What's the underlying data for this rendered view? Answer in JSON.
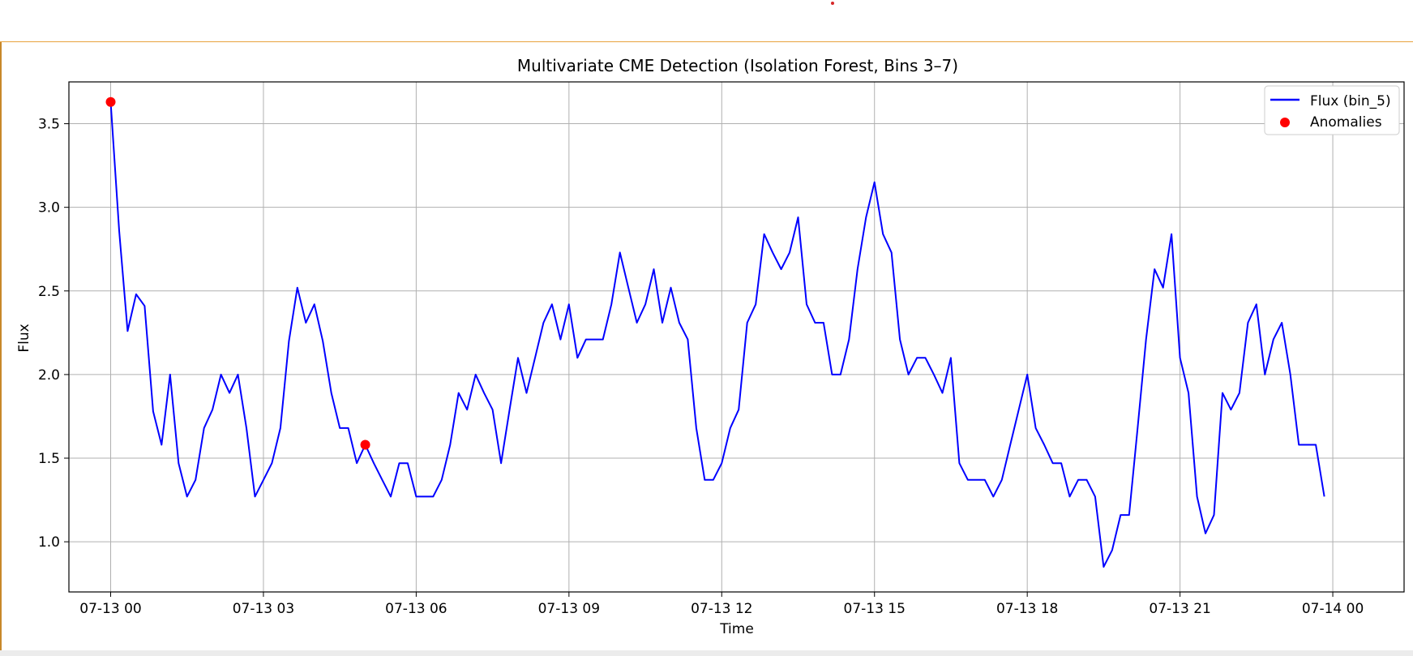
{
  "chart_data": {
    "type": "line",
    "title": "Multivariate CME Detection (Isolation Forest, Bins 3–7)",
    "xlabel": "Time",
    "ylabel": "Flux",
    "x_range_hours": [
      -0.82,
      25.4
    ],
    "ylim": [
      0.7,
      3.75
    ],
    "grid": true,
    "legend_position": "top-right",
    "x_ticks": [
      {
        "h": 0,
        "label": "07-13 00"
      },
      {
        "h": 3,
        "label": "07-13 03"
      },
      {
        "h": 6,
        "label": "07-13 06"
      },
      {
        "h": 9,
        "label": "07-13 09"
      },
      {
        "h": 12,
        "label": "07-13 12"
      },
      {
        "h": 15,
        "label": "07-13 15"
      },
      {
        "h": 18,
        "label": "07-13 18"
      },
      {
        "h": 21,
        "label": "07-13 21"
      },
      {
        "h": 24,
        "label": "07-14 00"
      }
    ],
    "y_ticks": [
      {
        "v": 1.0,
        "label": "1.0"
      },
      {
        "v": 1.5,
        "label": "1.5"
      },
      {
        "v": 2.0,
        "label": "2.0"
      },
      {
        "v": 2.5,
        "label": "2.5"
      },
      {
        "v": 3.0,
        "label": "3.0"
      },
      {
        "v": 3.5,
        "label": "3.5"
      }
    ],
    "series": [
      {
        "name": "Flux (bin_5)",
        "color": "#0000ff",
        "x_hours": [
          0,
          0.1667,
          0.3333,
          0.5,
          0.6667,
          0.8333,
          1,
          1.1667,
          1.3333,
          1.5,
          1.6667,
          1.8333,
          2,
          2.1667,
          2.3333,
          2.5,
          2.6667,
          2.8333,
          3,
          3.1667,
          3.3333,
          3.5,
          3.6667,
          3.8333,
          4,
          4.1667,
          4.3333,
          4.5,
          4.6667,
          4.8333,
          5,
          5.1667,
          5.3333,
          5.5,
          5.6667,
          5.8333,
          6,
          6.1667,
          6.3333,
          6.5,
          6.6667,
          6.8333,
          7,
          7.1667,
          7.3333,
          7.5,
          7.6667,
          7.8333,
          8,
          8.1667,
          8.3333,
          8.5,
          8.6667,
          8.8333,
          9,
          9.1667,
          9.3333,
          9.5,
          9.6667,
          9.8333,
          10,
          10.1667,
          10.3333,
          10.5,
          10.6667,
          10.8333,
          11,
          11.1667,
          11.3333,
          11.5,
          11.6667,
          11.8333,
          12,
          12.1667,
          12.3333,
          12.5,
          12.6667,
          12.8333,
          13,
          13.1667,
          13.3333,
          13.5,
          13.6667,
          13.8333,
          14,
          14.1667,
          14.3333,
          14.5,
          14.6667,
          14.8333,
          15,
          15.1667,
          15.3333,
          15.5,
          15.6667,
          15.8333,
          16,
          16.1667,
          16.3333,
          16.5,
          16.6667,
          16.8333,
          17,
          17.1667,
          17.3333,
          17.5,
          17.6667,
          17.8333,
          18,
          18.1667,
          18.3333,
          18.5,
          18.6667,
          18.8333,
          19,
          19.1667,
          19.3333,
          19.5,
          19.6667,
          19.8333,
          20,
          20.1667,
          20.3333,
          20.5,
          20.6667,
          20.8333,
          21,
          21.1667,
          21.3333,
          21.5,
          21.6667,
          21.8333,
          22,
          22.1667,
          22.3333,
          22.5,
          22.6667,
          22.8333,
          23,
          23.1667,
          23.3333,
          23.5,
          23.6667,
          23.8333
        ],
        "values": [
          3.63,
          2.86,
          2.26,
          2.48,
          2.41,
          1.78,
          1.58,
          2.0,
          1.47,
          1.27,
          1.37,
          1.68,
          1.79,
          2.0,
          1.89,
          2.0,
          1.68,
          1.27,
          1.37,
          1.47,
          1.68,
          2.2,
          2.52,
          2.31,
          2.42,
          2.2,
          1.89,
          1.68,
          1.68,
          1.47,
          1.58,
          1.47,
          1.37,
          1.27,
          1.47,
          1.47,
          1.27,
          1.27,
          1.27,
          1.37,
          1.58,
          1.89,
          1.79,
          2.0,
          1.89,
          1.79,
          1.47,
          1.79,
          2.1,
          1.89,
          2.1,
          2.31,
          2.42,
          2.21,
          2.42,
          2.1,
          2.21,
          2.21,
          2.21,
          2.42,
          2.73,
          2.52,
          2.31,
          2.42,
          2.63,
          2.31,
          2.52,
          2.31,
          2.21,
          1.68,
          1.37,
          1.37,
          1.47,
          1.68,
          1.79,
          2.31,
          2.42,
          2.84,
          2.73,
          2.63,
          2.73,
          2.94,
          2.42,
          2.31,
          2.31,
          2.0,
          2.0,
          2.21,
          2.63,
          2.94,
          3.15,
          2.84,
          2.73,
          2.21,
          2.0,
          2.1,
          2.1,
          2.0,
          1.89,
          2.1,
          1.47,
          1.37,
          1.37,
          1.37,
          1.27,
          1.37,
          1.58,
          1.79,
          2.0,
          1.68,
          1.58,
          1.47,
          1.47,
          1.27,
          1.37,
          1.37,
          1.27,
          0.85,
          0.95,
          1.16,
          1.16,
          1.68,
          2.21,
          2.63,
          2.52,
          2.84,
          2.1,
          1.89,
          1.27,
          1.05,
          1.16,
          1.89,
          1.79,
          1.89,
          2.31,
          2.42,
          2.0,
          2.21,
          2.31,
          2.0,
          1.58,
          1.58,
          1.58,
          1.27
        ]
      },
      {
        "name": "Anomalies",
        "color": "#ff0000",
        "points": [
          {
            "x_hours": 0,
            "value": 3.63
          },
          {
            "x_hours": 5.0,
            "value": 1.58
          }
        ]
      }
    ]
  }
}
